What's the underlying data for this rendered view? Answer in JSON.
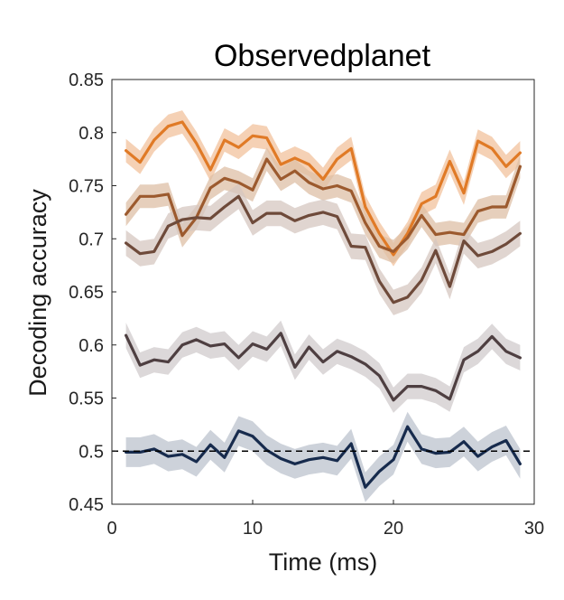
{
  "chart_data": {
    "type": "line",
    "title": "Observedplanet",
    "xlabel": "Time (ms)",
    "ylabel": "Decoding accuracy",
    "xlim": [
      0,
      30
    ],
    "ylim": [
      0.45,
      0.85
    ],
    "xticks": [
      "0",
      "10",
      "20",
      "30"
    ],
    "yticks": [
      "0.45",
      "0.5",
      "0.55",
      "0.6",
      "0.65",
      "0.7",
      "0.75",
      "0.8",
      "0.85"
    ],
    "chance_level": 0.5,
    "grid": false,
    "x": [
      1,
      2,
      3,
      4,
      5,
      6,
      7,
      8,
      9,
      10,
      11,
      12,
      13,
      14,
      15,
      16,
      17,
      18,
      19,
      20,
      21,
      22,
      23,
      24,
      25,
      26,
      27,
      28,
      29
    ],
    "series": [
      {
        "color": "#E07A26",
        "band_color": "#F2C29C",
        "values": [
          0.783,
          0.772,
          0.793,
          0.806,
          0.81,
          0.79,
          0.765,
          0.793,
          0.786,
          0.797,
          0.795,
          0.77,
          0.776,
          0.77,
          0.756,
          0.775,
          0.785,
          0.73,
          0.705,
          0.685,
          0.705,
          0.733,
          0.74,
          0.773,
          0.743,
          0.792,
          0.785,
          0.768,
          0.781
        ],
        "band": 0.011
      },
      {
        "color": "#9C5A2E",
        "band_color": "#DDBFA6",
        "values": [
          0.723,
          0.74,
          0.74,
          0.742,
          0.703,
          0.72,
          0.748,
          0.757,
          0.753,
          0.746,
          0.775,
          0.756,
          0.764,
          0.753,
          0.747,
          0.75,
          0.745,
          0.715,
          0.693,
          0.688,
          0.701,
          0.722,
          0.704,
          0.706,
          0.704,
          0.726,
          0.73,
          0.73,
          0.768
        ],
        "band": 0.011
      },
      {
        "color": "#6E4A3A",
        "band_color": "#D5C7C0",
        "values": [
          0.696,
          0.686,
          0.688,
          0.712,
          0.718,
          0.72,
          0.719,
          0.73,
          0.74,
          0.715,
          0.724,
          0.724,
          0.717,
          0.722,
          0.725,
          0.721,
          0.693,
          0.692,
          0.66,
          0.64,
          0.645,
          0.661,
          0.689,
          0.655,
          0.698,
          0.684,
          0.688,
          0.695,
          0.705
        ],
        "band": 0.012
      },
      {
        "color": "#4E3F41",
        "band_color": "#D0CBCC",
        "values": [
          0.609,
          0.581,
          0.586,
          0.584,
          0.6,
          0.605,
          0.599,
          0.601,
          0.588,
          0.601,
          0.596,
          0.611,
          0.579,
          0.598,
          0.584,
          0.594,
          0.589,
          0.582,
          0.571,
          0.548,
          0.561,
          0.561,
          0.557,
          0.549,
          0.586,
          0.594,
          0.608,
          0.594,
          0.588
        ],
        "band": 0.012
      },
      {
        "color": "#172B4D",
        "band_color": "#BCC3CE",
        "values": [
          0.499,
          0.499,
          0.502,
          0.495,
          0.497,
          0.49,
          0.506,
          0.494,
          0.519,
          0.514,
          0.501,
          0.493,
          0.488,
          0.492,
          0.494,
          0.491,
          0.507,
          0.466,
          0.481,
          0.492,
          0.523,
          0.502,
          0.498,
          0.499,
          0.509,
          0.495,
          0.504,
          0.51,
          0.488
        ],
        "band": 0.014
      }
    ]
  }
}
